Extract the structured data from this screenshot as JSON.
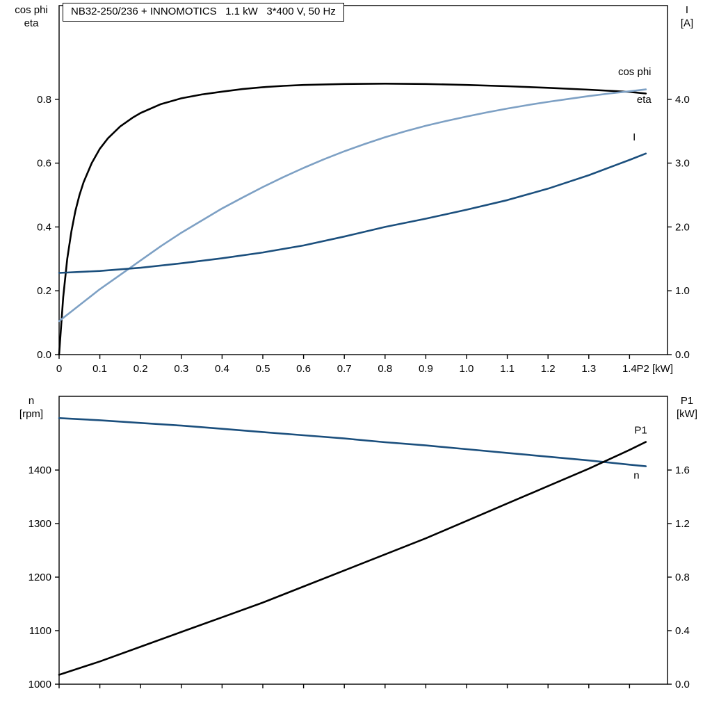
{
  "title_box": {
    "text": "NB32-250/236 + INNOMOTICS   1.1 kW   3*400 V, 50 Hz"
  },
  "colors": {
    "axis": "#000000",
    "background": "#ffffff",
    "eta_p1_curve": "#000000",
    "cos_phi_curve": "#7da0c4",
    "current_speed_curve": "#1b4f7d"
  },
  "chart_data": [
    {
      "type": "line",
      "name": "motor-electrical-curves",
      "x_axis": {
        "label": "P2 [kW]",
        "min": 0,
        "max": 1.4932,
        "ticks": [
          0,
          0.1,
          0.2,
          0.3,
          0.4,
          0.5,
          0.6,
          0.7,
          0.8,
          0.9,
          1.0,
          1.1,
          1.2,
          1.3,
          1.4
        ],
        "tick_labels": [
          "0",
          "0.1",
          "0.2",
          "0.3",
          "0.4",
          "0.5",
          "0.6",
          "0.7",
          "0.8",
          "0.9",
          "1.0",
          "1.1",
          "1.2",
          "1.3",
          "1.4"
        ]
      },
      "y_left": {
        "label_lines": [
          "cos phi",
          "eta"
        ],
        "min": 0,
        "max": 1.0937,
        "ticks": [
          0.0,
          0.2,
          0.4,
          0.6,
          0.8
        ],
        "tick_labels": [
          "0.0",
          "0.2",
          "0.4",
          "0.6",
          "0.8"
        ]
      },
      "y_right": {
        "label_lines": [
          "I",
          "[A]"
        ],
        "min": 0,
        "max": 5.468,
        "ticks": [
          0.0,
          1.0,
          2.0,
          3.0,
          4.0
        ],
        "tick_labels": [
          "0.0",
          "1.0",
          "2.0",
          "3.0",
          "4.0"
        ]
      },
      "series": [
        {
          "name": "eta",
          "label": "eta",
          "axis": "left",
          "color": "#000000",
          "label_pos": {
            "x": 1.418,
            "y": 0.8
          },
          "points": [
            [
              0,
              0
            ],
            [
              0.01,
              0.18
            ],
            [
              0.02,
              0.3
            ],
            [
              0.03,
              0.385
            ],
            [
              0.04,
              0.45
            ],
            [
              0.05,
              0.5
            ],
            [
              0.06,
              0.54
            ],
            [
              0.08,
              0.6
            ],
            [
              0.1,
              0.645
            ],
            [
              0.12,
              0.678
            ],
            [
              0.15,
              0.715
            ],
            [
              0.18,
              0.742
            ],
            [
              0.2,
              0.757
            ],
            [
              0.25,
              0.785
            ],
            [
              0.3,
              0.803
            ],
            [
              0.35,
              0.815
            ],
            [
              0.4,
              0.824
            ],
            [
              0.45,
              0.832
            ],
            [
              0.5,
              0.838
            ],
            [
              0.55,
              0.842
            ],
            [
              0.6,
              0.845
            ],
            [
              0.7,
              0.848
            ],
            [
              0.8,
              0.849
            ],
            [
              0.9,
              0.848
            ],
            [
              1.0,
              0.845
            ],
            [
              1.1,
              0.841
            ],
            [
              1.2,
              0.836
            ],
            [
              1.3,
              0.83
            ],
            [
              1.4,
              0.823
            ],
            [
              1.44,
              0.818
            ]
          ]
        },
        {
          "name": "cos-phi",
          "label": "cos phi",
          "axis": "left",
          "color": "#7da0c4",
          "label_pos": {
            "x": 1.372,
            "y": 0.887
          },
          "points": [
            [
              0,
              0.105
            ],
            [
              0.05,
              0.155
            ],
            [
              0.1,
              0.205
            ],
            [
              0.15,
              0.25
            ],
            [
              0.2,
              0.295
            ],
            [
              0.25,
              0.34
            ],
            [
              0.3,
              0.382
            ],
            [
              0.35,
              0.42
            ],
            [
              0.4,
              0.458
            ],
            [
              0.45,
              0.492
            ],
            [
              0.5,
              0.525
            ],
            [
              0.55,
              0.556
            ],
            [
              0.6,
              0.585
            ],
            [
              0.65,
              0.612
            ],
            [
              0.7,
              0.637
            ],
            [
              0.75,
              0.66
            ],
            [
              0.8,
              0.681
            ],
            [
              0.85,
              0.7
            ],
            [
              0.9,
              0.717
            ],
            [
              0.95,
              0.732
            ],
            [
              1.0,
              0.746
            ],
            [
              1.05,
              0.759
            ],
            [
              1.1,
              0.771
            ],
            [
              1.15,
              0.782
            ],
            [
              1.2,
              0.792
            ],
            [
              1.25,
              0.801
            ],
            [
              1.3,
              0.81
            ],
            [
              1.35,
              0.818
            ],
            [
              1.4,
              0.825
            ],
            [
              1.44,
              0.831
            ]
          ]
        },
        {
          "name": "current",
          "label": "I",
          "axis": "right",
          "color": "#1b4f7d",
          "label_pos": {
            "x": 1.408,
            "y": 3.41
          },
          "points": [
            [
              0,
              1.28
            ],
            [
              0.1,
              1.31
            ],
            [
              0.2,
              1.36
            ],
            [
              0.3,
              1.43
            ],
            [
              0.4,
              1.51
            ],
            [
              0.5,
              1.6
            ],
            [
              0.6,
              1.71
            ],
            [
              0.7,
              1.85
            ],
            [
              0.8,
              2.0
            ],
            [
              0.9,
              2.13
            ],
            [
              1.0,
              2.27
            ],
            [
              1.1,
              2.42
            ],
            [
              1.2,
              2.6
            ],
            [
              1.3,
              2.81
            ],
            [
              1.4,
              3.05
            ],
            [
              1.44,
              3.15
            ]
          ]
        }
      ]
    },
    {
      "type": "line",
      "name": "speed-power-curves",
      "x_axis": {
        "label": "",
        "min": 0,
        "max": 1.4932,
        "ticks": [
          0,
          0.1,
          0.2,
          0.3,
          0.4,
          0.5,
          0.6,
          0.7,
          0.8,
          0.9,
          1.0,
          1.1,
          1.2,
          1.3,
          1.4
        ],
        "tick_labels": []
      },
      "y_left": {
        "label_lines": [
          "n",
          "[rpm]"
        ],
        "min": 1000,
        "max": 1537.7,
        "ticks": [
          1000,
          1100,
          1200,
          1300,
          1400
        ],
        "tick_labels": [
          "1000",
          "1100",
          "1200",
          "1300",
          "1400"
        ]
      },
      "y_right": {
        "label_lines": [
          "P1",
          "[kW]"
        ],
        "min": 0,
        "max": 2.1507,
        "ticks": [
          0.0,
          0.4,
          0.8,
          1.2,
          1.6
        ],
        "tick_labels": [
          "0.0",
          "0.4",
          "0.8",
          "1.2",
          "1.6"
        ]
      },
      "series": [
        {
          "name": "speed",
          "label": "n",
          "axis": "left",
          "color": "#1b4f7d",
          "label_pos": {
            "x": 1.41,
            "y": 1390
          },
          "points": [
            [
              0,
              1497
            ],
            [
              0.1,
              1493
            ],
            [
              0.2,
              1488
            ],
            [
              0.3,
              1483
            ],
            [
              0.4,
              1477
            ],
            [
              0.5,
              1471
            ],
            [
              0.6,
              1465
            ],
            [
              0.7,
              1459
            ],
            [
              0.8,
              1452
            ],
            [
              0.9,
              1446
            ],
            [
              1.0,
              1439
            ],
            [
              1.1,
              1432
            ],
            [
              1.2,
              1425
            ],
            [
              1.3,
              1418
            ],
            [
              1.4,
              1410
            ],
            [
              1.44,
              1407
            ]
          ]
        },
        {
          "name": "p1",
          "label": "P1",
          "axis": "right",
          "color": "#000000",
          "label_pos": {
            "x": 1.412,
            "y": 1.9
          },
          "points": [
            [
              0,
              0.07
            ],
            [
              0.1,
              0.17
            ],
            [
              0.2,
              0.28
            ],
            [
              0.3,
              0.39
            ],
            [
              0.4,
              0.5
            ],
            [
              0.5,
              0.61
            ],
            [
              0.6,
              0.73
            ],
            [
              0.7,
              0.85
            ],
            [
              0.8,
              0.97
            ],
            [
              0.9,
              1.09
            ],
            [
              1.0,
              1.22
            ],
            [
              1.1,
              1.35
            ],
            [
              1.2,
              1.48
            ],
            [
              1.3,
              1.61
            ],
            [
              1.4,
              1.75
            ],
            [
              1.44,
              1.81
            ]
          ]
        }
      ]
    }
  ]
}
